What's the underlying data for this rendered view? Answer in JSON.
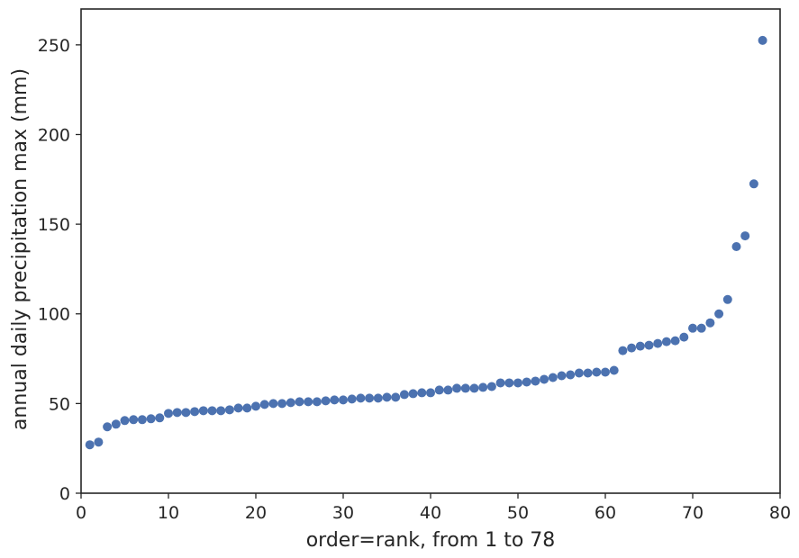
{
  "chart_data": {
    "type": "scatter",
    "title": "",
    "xlabel": "order=rank, from 1 to 78",
    "ylabel": "annual daily precipitation max (mm)",
    "xlim": [
      0,
      80
    ],
    "ylim": [
      0,
      270
    ],
    "xticks": [
      0,
      10,
      20,
      30,
      40,
      50,
      60,
      70,
      80
    ],
    "yticks": [
      0,
      50,
      100,
      150,
      200,
      250
    ],
    "grid": false,
    "legend": "none",
    "marker_color": "#4c72b0",
    "series": [
      {
        "x": [
          1,
          2,
          3,
          4,
          5,
          6,
          7,
          8,
          9,
          10,
          11,
          12,
          13,
          14,
          15,
          16,
          17,
          18,
          19,
          20,
          21,
          22,
          23,
          24,
          25,
          26,
          27,
          28,
          29,
          30,
          31,
          32,
          33,
          34,
          35,
          36,
          37,
          38,
          39,
          40,
          41,
          42,
          43,
          44,
          45,
          46,
          47,
          48,
          49,
          50,
          51,
          52,
          53,
          54,
          55,
          56,
          57,
          58,
          59,
          60,
          61,
          62,
          63,
          64,
          65,
          66,
          67,
          68,
          69,
          70,
          71,
          72,
          73,
          74,
          75,
          76,
          77,
          78
        ],
        "values": [
          27,
          28.5,
          37,
          38.5,
          40.5,
          41,
          41,
          41.5,
          42,
          44.5,
          45,
          45,
          45.5,
          46,
          46,
          46,
          46.5,
          47.5,
          47.5,
          48.5,
          49.5,
          50,
          50,
          50.5,
          51,
          51,
          51,
          51.5,
          52,
          52,
          52.5,
          53,
          53,
          53,
          53.5,
          53.5,
          55,
          55.5,
          56,
          56,
          57.5,
          57.5,
          58.5,
          58.5,
          58.5,
          59,
          59.5,
          61.5,
          61.5,
          61.5,
          62,
          62.5,
          63.5,
          64.5,
          65.5,
          66,
          67,
          67,
          67.5,
          67.5,
          68.5,
          79.5,
          81,
          82,
          82.5,
          83.5,
          84.5,
          85,
          87,
          92,
          92,
          95,
          100,
          108,
          137.5,
          143.5,
          172.5,
          252.5
        ]
      }
    ]
  }
}
